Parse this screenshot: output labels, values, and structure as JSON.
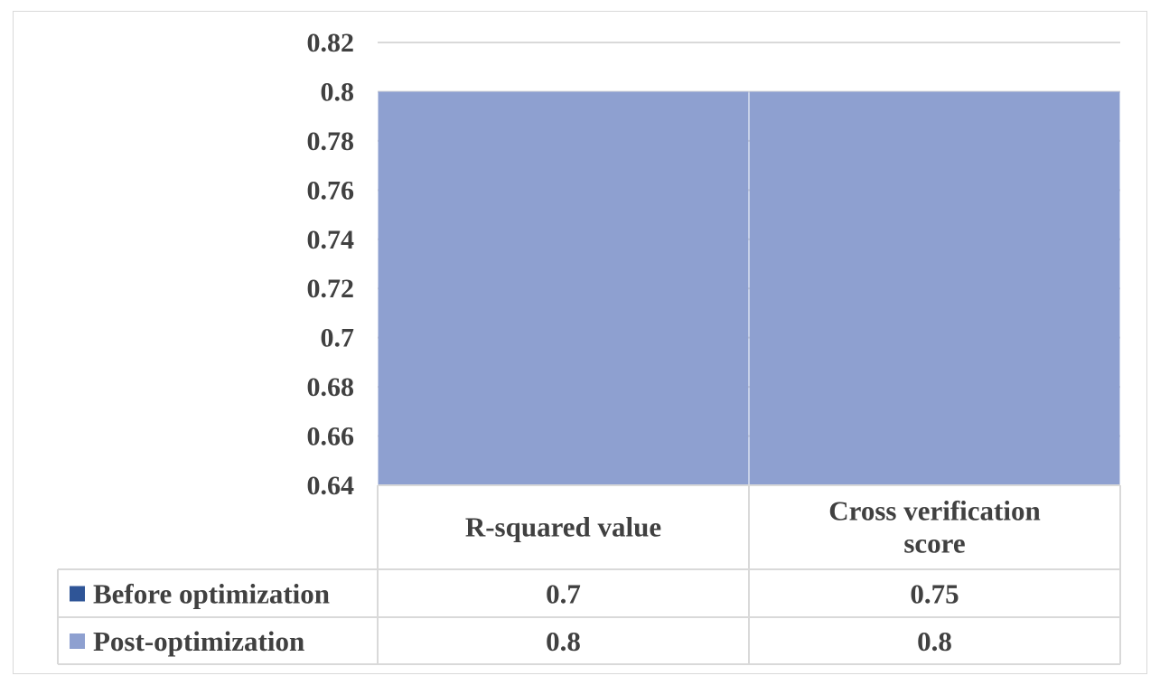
{
  "chart_data": {
    "type": "bar",
    "categories": [
      "R-squared value",
      "Cross verification score"
    ],
    "category_lines": [
      [
        "R-squared value"
      ],
      [
        "Cross verification",
        "score"
      ]
    ],
    "series": [
      {
        "name": "Before optimization",
        "values": [
          0.7,
          0.75
        ],
        "labels": [
          "0.7",
          "0.75"
        ],
        "color": "#2f5597"
      },
      {
        "name": "Post-optimization",
        "values": [
          0.8,
          0.8
        ],
        "labels": [
          "0.8",
          "0.8"
        ],
        "color": "#8ea0d0"
      }
    ],
    "yticks": [
      "0.82",
      "0.8",
      "0.78",
      "0.76",
      "0.74",
      "0.72",
      "0.7",
      "0.68",
      "0.66",
      "0.64"
    ],
    "ylim": [
      0.64,
      0.82
    ],
    "grid": true,
    "legend": "data-table",
    "title": "",
    "xlabel": "",
    "ylabel": ""
  }
}
